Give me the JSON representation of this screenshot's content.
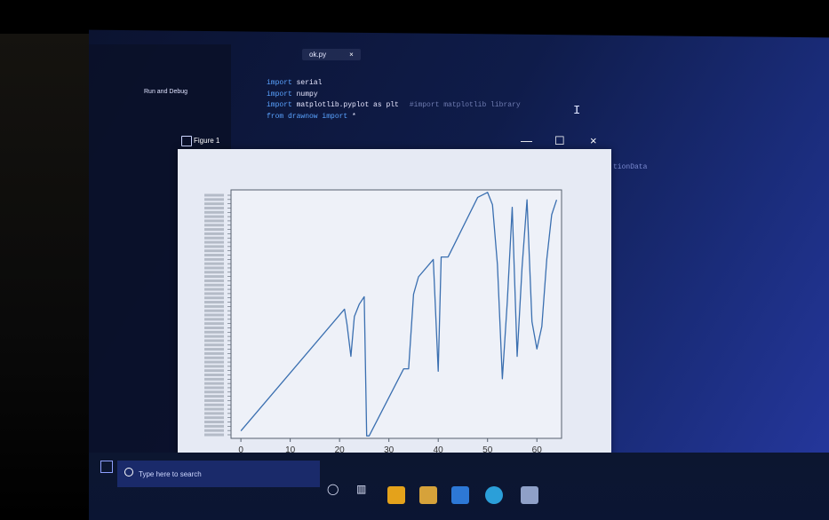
{
  "editor": {
    "tab_label": "ok.py",
    "tab_close": "×",
    "run_debug_label": "Run and Debug",
    "code_lines": [
      {
        "kw": "import",
        "id": "serial",
        "comment": ""
      },
      {
        "kw": "import",
        "id": "numpy",
        "comment": ""
      },
      {
        "kw": "import",
        "id": "matplotlib.pyplot as plt",
        "comment": "#import matplotlib library"
      },
      {
        "kw": "from drawnow import",
        "id": "*",
        "comment": ""
      }
    ],
    "right_text": "tionData"
  },
  "figure_window": {
    "title": "Figure 1",
    "minimize": "—",
    "maximize": "☐",
    "close": "×"
  },
  "taskbar": {
    "search_placeholder": "Type here to search"
  },
  "colors": {
    "line": "#3a6fb0",
    "figure_bg": "#e6eaf4",
    "axes_bg": "#eef1f8"
  },
  "chart_data": {
    "type": "line",
    "title": "",
    "xlabel": "",
    "ylabel": "",
    "xlim": [
      -2,
      65
    ],
    "ylim": [
      0,
      100
    ],
    "x_ticks": [
      "0",
      "10",
      "20",
      "30",
      "40",
      "50",
      "60"
    ],
    "y_ticks": [],
    "grid": false,
    "series": [
      {
        "x": [
          0,
          21,
          21.5,
          22.3,
          23,
          24,
          25,
          25.5,
          26,
          33,
          34,
          35,
          36,
          39,
          40,
          40.6,
          41,
          42,
          43,
          48,
          50,
          51,
          52,
          53,
          54,
          55,
          56,
          57,
          58,
          59,
          60,
          61,
          62,
          63,
          64
        ],
        "values": [
          3,
          52,
          46,
          33,
          49,
          54,
          57,
          1,
          1,
          28,
          28,
          58,
          65,
          72,
          27,
          73,
          73,
          73,
          77,
          97,
          99,
          94,
          70,
          24,
          55,
          93,
          33,
          69,
          96,
          47,
          36,
          45,
          72,
          90,
          96
        ]
      }
    ]
  }
}
